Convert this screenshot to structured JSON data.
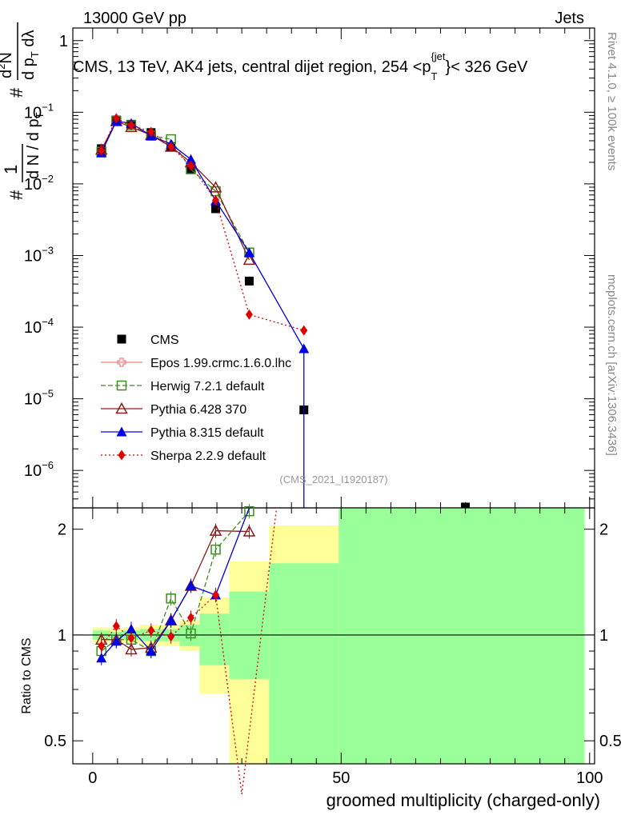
{
  "header": {
    "left": "13000 GeV pp",
    "right": "Jets"
  },
  "side_labels": {
    "rivet": "Rivet 4.1.0, ≥ 100k events",
    "mcplots": "mcplots.cern.ch [arXiv:1306.3436]"
  },
  "watermark": "(CMS_2021_I1920187)",
  "chart_data": [
    {
      "type": "line",
      "panel": "main",
      "title": "CMS, 13 TeV, AK4 jets, central dijet region, 254 < p_T^{jet} < 326 GeV",
      "title_parts": {
        "main": "CMS, 13 TeV, AK4 jets, central dijet region, 254 <p",
        "sub": "T",
        "sup": "{jet",
        "end": "}< 326 GeV"
      },
      "ylabel_parts": {
        "hash": "#",
        "one": "1",
        "den": "d N / d p",
        "den_sub": "T",
        "num_hash": "#",
        "num_top": "d",
        "num_sup": "2",
        "num_top_end": "N",
        "num_bot": "d p",
        "num_bot_sub": "T",
        "num_bot_end": " dλ"
      },
      "yscale": "log",
      "xlim": [
        -4,
        101
      ],
      "ylim": [
        3e-07,
        1.5
      ],
      "y_ticks": [
        {
          "value": 1,
          "label": "1",
          "exp": ""
        },
        {
          "value": 0.1,
          "label": "10",
          "exp": "−1"
        },
        {
          "value": 0.01,
          "label": "10",
          "exp": "−2"
        },
        {
          "value": 0.001,
          "label": "10",
          "exp": "−3"
        },
        {
          "value": 0.0001,
          "label": "10",
          "exp": "−4"
        },
        {
          "value": 1e-05,
          "label": "10",
          "exp": "−5"
        },
        {
          "value": 1e-06,
          "label": "10",
          "exp": "−6"
        }
      ],
      "legend_position": "center-left",
      "series": [
        {
          "name": "CMS",
          "color": "#000000",
          "marker": "square-filled",
          "style": "points",
          "x": [
            1.75,
            4.75,
            7.75,
            11.75,
            15.75,
            19.75,
            24.75,
            31.5,
            42.5,
            75
          ],
          "y": [
            0.031,
            0.078,
            0.068,
            0.052,
            0.033,
            0.016,
            0.0045,
            0.00044,
            7e-06,
            2.8e-07
          ]
        },
        {
          "name": "Epos 1.99.crmc.1.6.0.lhc",
          "color": "#f08080",
          "marker": "cross-open",
          "style": "solid",
          "x": [],
          "y": []
        },
        {
          "name": "Herwig 7.2.1 default",
          "color": "#3a8f1c",
          "marker": "square-open",
          "style": "dashed",
          "x": [
            1.75,
            4.75,
            7.75,
            11.75,
            15.75,
            19.75,
            24.75,
            31.5
          ],
          "y": [
            0.028,
            0.076,
            0.066,
            0.047,
            0.042,
            0.016,
            0.0079,
            0.0011
          ]
        },
        {
          "name": "Pythia 6.428 370",
          "color": "#8b1a1a",
          "marker": "triangle-open",
          "style": "solid",
          "x": [
            1.75,
            4.75,
            7.75,
            11.75,
            15.75,
            19.75,
            24.75,
            31.5
          ],
          "y": [
            0.03,
            0.075,
            0.062,
            0.048,
            0.033,
            0.02,
            0.0089,
            0.00087
          ]
        },
        {
          "name": "Pythia 8.315 default",
          "color": "#0000e0",
          "marker": "triangle-filled",
          "style": "solid",
          "x": [
            1.75,
            4.75,
            7.75,
            11.75,
            15.75,
            19.75,
            24.75,
            31.5,
            42.5
          ],
          "y": [
            0.027,
            0.075,
            0.07,
            0.047,
            0.036,
            0.022,
            0.0058,
            0.0011,
            5e-05
          ]
        },
        {
          "name": "Sherpa 2.2.9 default",
          "color": "#e00000",
          "marker": "diamond-filled",
          "style": "dotted",
          "x": [
            1.75,
            4.75,
            7.75,
            11.75,
            15.75,
            19.75,
            24.75,
            31.5,
            42.5
          ],
          "y": [
            0.029,
            0.082,
            0.066,
            0.053,
            0.033,
            0.018,
            0.0059,
            0.00015,
            9e-05
          ]
        }
      ]
    },
    {
      "type": "line",
      "panel": "ratio",
      "xlabel": "groomed multiplicity (charged-only)",
      "ylabel": "Ratio to CMS",
      "xlim": [
        -4,
        101
      ],
      "ylim": [
        0.43,
        2.3
      ],
      "yscale": "log",
      "x_ticks": [
        {
          "value": 0,
          "label": "0"
        },
        {
          "value": 50,
          "label": "50"
        },
        {
          "value": 100,
          "label": "100"
        }
      ],
      "y_ticks": [
        {
          "value": 0.5,
          "label": "0.5"
        },
        {
          "value": 1,
          "label": "1"
        },
        {
          "value": 2,
          "label": "2"
        }
      ],
      "bands": [
        {
          "x0": 0,
          "x1": 3.5,
          "y_low": 0.95,
          "y_high": 1.05,
          "green_low": 0.97,
          "green_high": 1.03
        },
        {
          "x0": 3.5,
          "x1": 6,
          "y_low": 0.96,
          "y_high": 1.04,
          "green_low": 0.98,
          "green_high": 1.02
        },
        {
          "x0": 6,
          "x1": 9.5,
          "y_low": 0.95,
          "y_high": 1.05,
          "green_low": 0.97,
          "green_high": 1.03
        },
        {
          "x0": 9.5,
          "x1": 14,
          "y_low": 0.93,
          "y_high": 1.07,
          "green_low": 0.96,
          "green_high": 1.04
        },
        {
          "x0": 14,
          "x1": 17.5,
          "y_low": 0.93,
          "y_high": 1.07,
          "green_low": 0.96,
          "green_high": 1.04
        },
        {
          "x0": 17.5,
          "x1": 21.5,
          "y_low": 0.9,
          "y_high": 1.1,
          "green_low": 0.93,
          "green_high": 1.07
        },
        {
          "x0": 21.5,
          "x1": 27.5,
          "y_low": 0.68,
          "y_high": 1.28,
          "green_low": 0.82,
          "green_high": 1.15
        },
        {
          "x0": 27.5,
          "x1": 35.5,
          "y_low": 0.38,
          "y_high": 1.62,
          "green_low": 0.75,
          "green_high": 1.33
        },
        {
          "x0": 35.5,
          "x1": 49.5,
          "y_low": 0.38,
          "y_high": 2.05,
          "green_low": 0.41,
          "green_high": 1.6
        },
        {
          "x0": 49.5,
          "x1": 99,
          "y_low": 0.43,
          "y_high": 2.3,
          "green_low": 0.43,
          "green_high": 2.3
        }
      ],
      "series": [
        {
          "name": "Herwig 7.2.1 default",
          "color": "#3a8f1c",
          "marker": "square-open",
          "style": "dashed",
          "x": [
            1.75,
            4.75,
            7.75,
            11.75,
            15.75,
            19.75,
            24.75,
            31.5
          ],
          "y": [
            0.9,
            0.97,
            0.97,
            0.9,
            1.27,
            1.01,
            1.75,
            2.25
          ]
        },
        {
          "name": "Pythia 6.428 370",
          "color": "#8b1a1a",
          "marker": "triangle-open",
          "style": "solid",
          "x": [
            1.75,
            4.75,
            7.75,
            11.75,
            15.75,
            19.75,
            24.75,
            31.5
          ],
          "y": [
            0.97,
            0.97,
            0.91,
            0.92,
            1.1,
            1.38,
            1.98,
            1.97
          ]
        },
        {
          "name": "Pythia 8.315 default",
          "color": "#0000e0",
          "marker": "triangle-filled",
          "style": "solid",
          "x": [
            1.75,
            4.75,
            7.75,
            11.75,
            15.75,
            19.75,
            24.75,
            31.5
          ],
          "y": [
            0.86,
            0.96,
            1.04,
            0.9,
            1.1,
            1.38,
            1.3,
            2.3
          ]
        },
        {
          "name": "Sherpa 2.2.9 default",
          "color": "#e00000",
          "marker": "diamond-filled",
          "style": "dotted",
          "x": [
            1.75,
            4.75,
            7.75,
            11.75,
            15.75,
            19.75,
            24.75,
            30,
            37
          ],
          "y": [
            0.93,
            1.06,
            0.98,
            1.03,
            0.99,
            1.12,
            1.3,
            0.35,
            2.3
          ]
        }
      ]
    }
  ]
}
